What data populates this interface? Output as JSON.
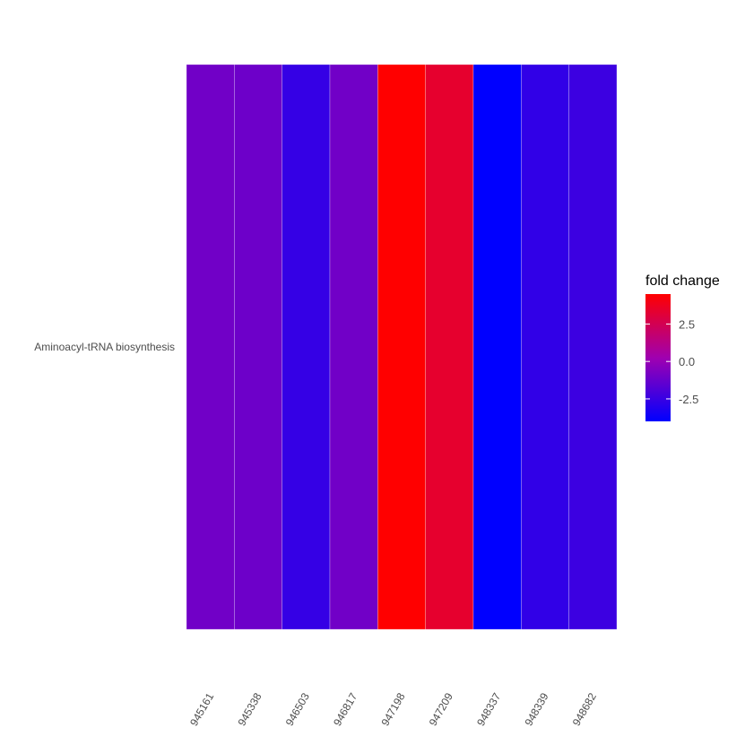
{
  "chart_data": {
    "type": "heatmap",
    "title": "",
    "xlabel": "",
    "ylabel": "",
    "rows": [
      "Aminoacyl-tRNA biosynthesis"
    ],
    "columns": [
      "945161",
      "945338",
      "946503",
      "946817",
      "947198",
      "947209",
      "948337",
      "948339",
      "948682"
    ],
    "values": [
      [
        -1.0,
        -1.1,
        -2.6,
        -1.0,
        4.5,
        3.4,
        -4.0,
        -2.7,
        -2.4
      ]
    ],
    "legend": {
      "title": "fold change",
      "ticks": [
        2.5,
        0.0,
        -2.5
      ],
      "tick_labels": [
        "2.5",
        "0.0",
        "-2.5"
      ],
      "range": [
        -4.0,
        4.5
      ],
      "low_color": "#0000ff",
      "mid_color": "#a000b0",
      "high_color": "#ff0000",
      "placement": "right"
    }
  }
}
